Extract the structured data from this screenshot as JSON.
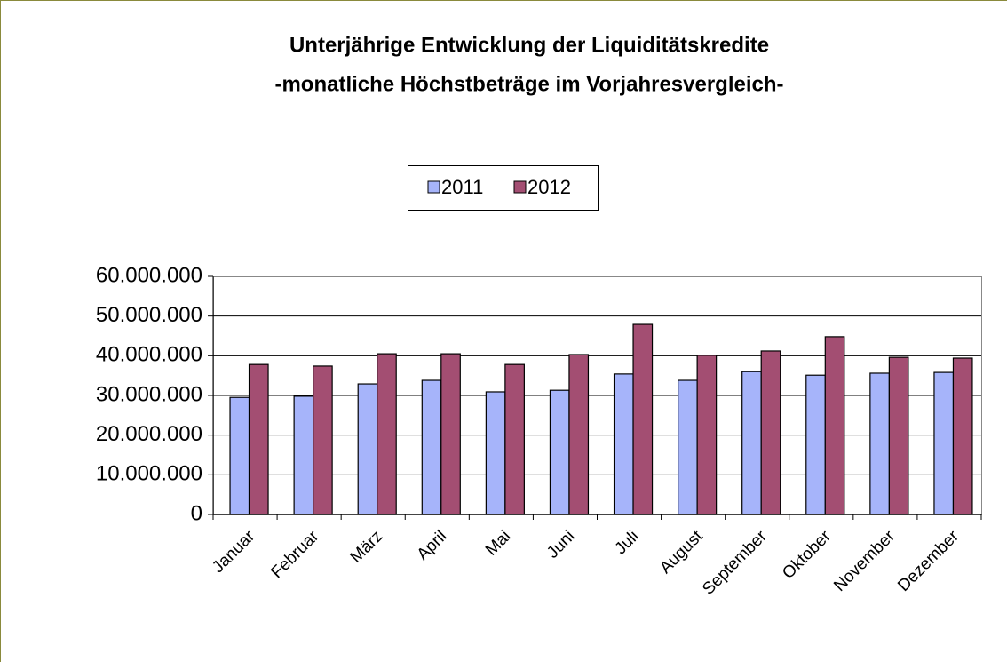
{
  "chart_data": {
    "type": "bar",
    "title": "Unterjährige Entwicklung der Liquiditätskredite",
    "subtitle": "-monatliche Höchstbeträge im Vorjahresvergleich-",
    "categories": [
      "Januar",
      "Februar",
      "März",
      "April",
      "Mai",
      "Juni",
      "Juli",
      "August",
      "September",
      "Oktober",
      "November",
      "Dezember"
    ],
    "series": [
      {
        "name": "2011",
        "color": "#a6b4fa",
        "values": [
          29500000,
          29800000,
          32900000,
          33800000,
          30900000,
          31300000,
          35400000,
          33800000,
          36000000,
          35100000,
          35600000,
          35800000
        ]
      },
      {
        "name": "2012",
        "color": "#a34e72",
        "values": [
          37800000,
          37400000,
          40500000,
          40500000,
          37800000,
          40300000,
          47900000,
          40100000,
          41200000,
          44800000,
          39600000,
          39400000
        ]
      }
    ],
    "ylim": [
      0,
      60000000
    ],
    "yticks": [
      0,
      {
        "value": 10000000,
        "label": "10.000.000"
      },
      {
        "value": 20000000,
        "label": "20.000.000"
      },
      {
        "value": 30000000,
        "label": "30.000.000"
      },
      {
        "value": 40000000,
        "label": "40.000.000"
      },
      {
        "value": 50000000,
        "label": "50.000.000"
      },
      {
        "value": 60000000,
        "label": "60.000.000"
      }
    ],
    "grid": true,
    "legend": "top"
  }
}
